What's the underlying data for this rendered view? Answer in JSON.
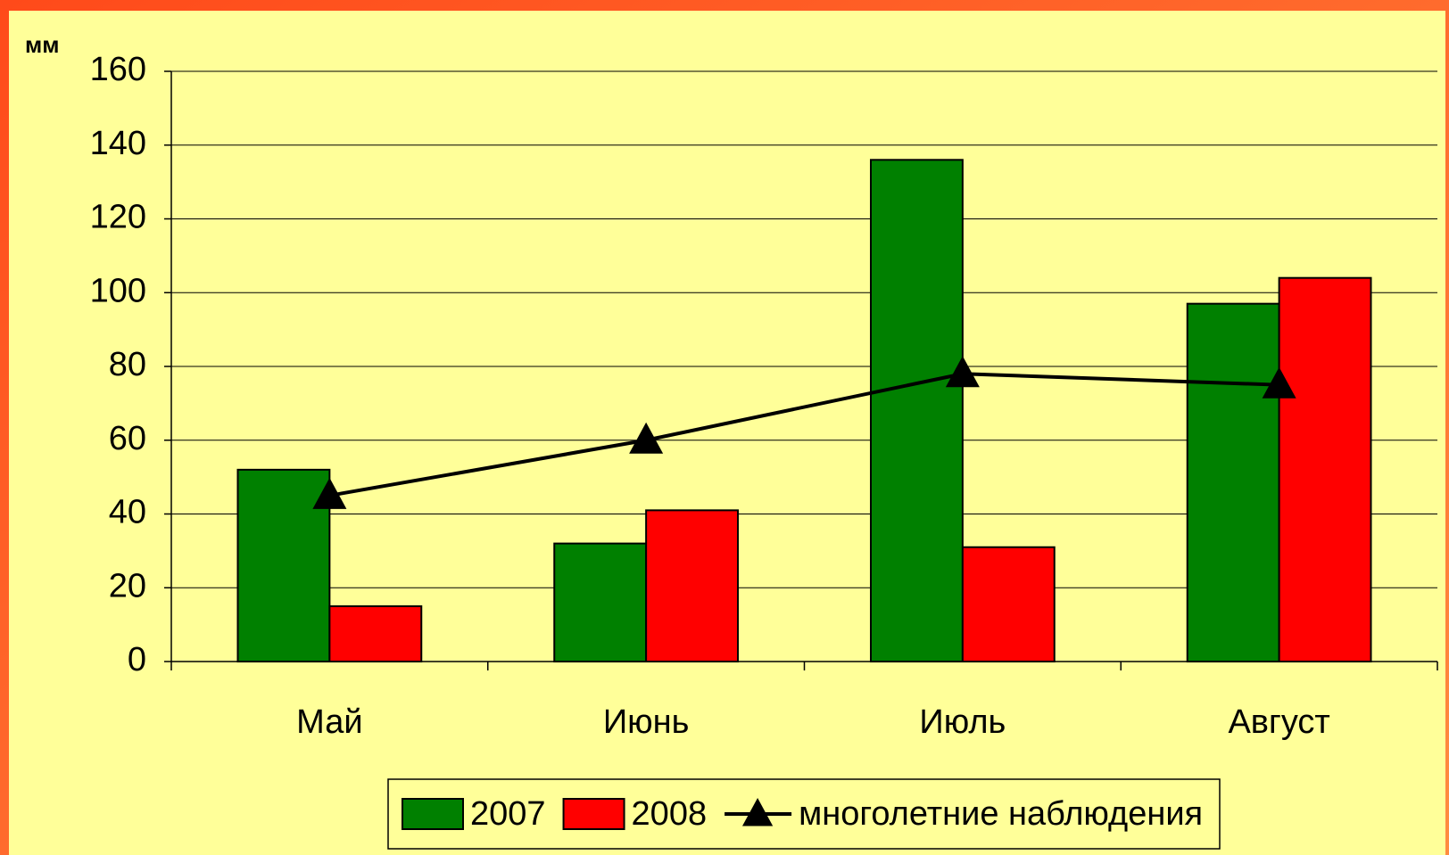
{
  "chart_data": {
    "type": "bar",
    "y_label": "мм",
    "categories": [
      "Май",
      "Июнь",
      "Июль",
      "Август"
    ],
    "series": [
      {
        "name": "2007",
        "color": "#008000",
        "values": [
          52,
          32,
          136,
          97
        ]
      },
      {
        "name": "2008",
        "color": "#ff0000",
        "values": [
          15,
          41,
          31,
          104
        ]
      },
      {
        "name": "многолетние наблюдения",
        "type": "line",
        "color": "#000000",
        "values": [
          45,
          60,
          78,
          75
        ]
      }
    ],
    "ylim": [
      0,
      160
    ],
    "yticks": [
      0,
      20,
      40,
      60,
      80,
      100,
      120,
      140,
      160
    ],
    "grid": true,
    "legend": "bottom"
  }
}
